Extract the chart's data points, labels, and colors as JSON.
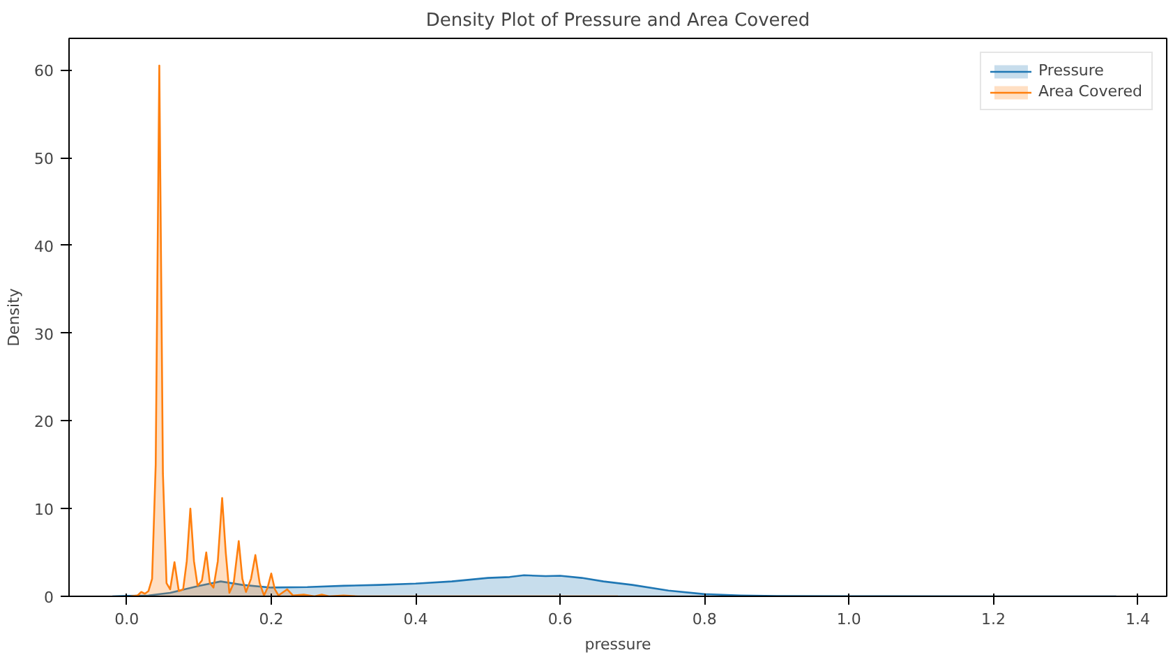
{
  "chart_data": {
    "type": "area",
    "title": "Density Plot of Pressure and Area Covered",
    "xlabel": "pressure",
    "ylabel": "Density",
    "xlim": [
      -0.08,
      1.44
    ],
    "ylim": [
      0,
      63.6
    ],
    "xticks": [
      {
        "value": 0,
        "label": "0.0"
      },
      {
        "value": 0.2,
        "label": "0.2"
      },
      {
        "value": 0.4,
        "label": "0.4"
      },
      {
        "value": 0.6,
        "label": "0.6"
      },
      {
        "value": 0.8,
        "label": "0.8"
      },
      {
        "value": 1.0,
        "label": "1.0"
      },
      {
        "value": 1.2,
        "label": "1.2"
      },
      {
        "value": 1.4,
        "label": "1.4"
      }
    ],
    "yticks": [
      0,
      10,
      20,
      30,
      40,
      50,
      60
    ],
    "grid": false,
    "legend": "top right",
    "series": [
      {
        "name": "Pressure",
        "color": "#1f77b4",
        "x": [
          -0.02,
          0.0,
          0.03,
          0.06,
          0.1,
          0.13,
          0.16,
          0.2,
          0.25,
          0.3,
          0.35,
          0.4,
          0.45,
          0.5,
          0.53,
          0.55,
          0.58,
          0.6,
          0.63,
          0.66,
          0.7,
          0.75,
          0.8,
          0.85,
          0.9,
          1.0,
          1.2,
          1.37
        ],
        "values": [
          0,
          0.05,
          0.1,
          0.4,
          1.2,
          1.7,
          1.3,
          1.0,
          1.05,
          1.2,
          1.3,
          1.45,
          1.7,
          2.1,
          2.2,
          2.4,
          2.3,
          2.35,
          2.1,
          1.7,
          1.3,
          0.65,
          0.25,
          0.1,
          0.03,
          0.01,
          0,
          0
        ]
      },
      {
        "name": "Area Covered",
        "color": "#ff7f0e",
        "x": [
          0.005,
          0.015,
          0.02,
          0.025,
          0.03,
          0.035,
          0.04,
          0.045,
          0.05,
          0.055,
          0.06,
          0.066,
          0.072,
          0.078,
          0.083,
          0.088,
          0.093,
          0.098,
          0.104,
          0.11,
          0.115,
          0.12,
          0.126,
          0.132,
          0.137,
          0.142,
          0.148,
          0.155,
          0.16,
          0.165,
          0.172,
          0.178,
          0.184,
          0.19,
          0.195,
          0.2,
          0.205,
          0.21,
          0.222,
          0.23,
          0.245,
          0.26,
          0.27,
          0.28,
          0.3,
          0.32,
          0.68
        ],
        "values": [
          0,
          0.1,
          0.5,
          0.3,
          0.6,
          2,
          15,
          60.5,
          14,
          1.5,
          0.8,
          3.9,
          0.6,
          0.8,
          4,
          10,
          4,
          1.2,
          1.8,
          5,
          1.5,
          1,
          4,
          11.2,
          5,
          0.4,
          1.5,
          6.3,
          2,
          0.5,
          2,
          4.7,
          1.5,
          0.1,
          1,
          2.6,
          0.8,
          0.1,
          0.8,
          0.1,
          0.2,
          0,
          0.2,
          0,
          0.1,
          0,
          0
        ]
      }
    ]
  }
}
